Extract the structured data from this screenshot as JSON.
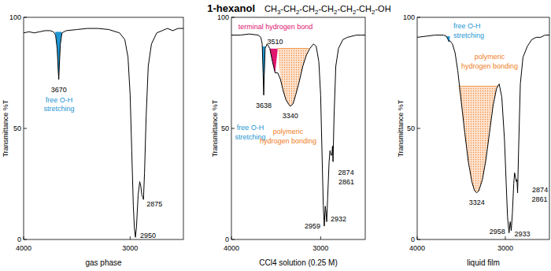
{
  "header": {
    "title": "1-hexanol",
    "formula": "CH3-CH2-CH2-CH2-CH2-CH2-OH"
  },
  "chart_data": [
    {
      "type": "line",
      "x_label": "gas phase",
      "y_label": "Transmittance %T",
      "xlim": [
        4000,
        2500
      ],
      "ylim": [
        0,
        100
      ],
      "xticks": [
        4000,
        3000
      ],
      "yticks": [
        0,
        50,
        100
      ],
      "series": [
        {
          "color": "#000000",
          "x": [
            4000,
            3950,
            3900,
            3850,
            3800,
            3750,
            3720,
            3700,
            3685,
            3675,
            3670,
            3665,
            3655,
            3640,
            3600,
            3500,
            3400,
            3300,
            3200,
            3100,
            3050,
            3020,
            3000,
            2985,
            2970,
            2960,
            2950,
            2940,
            2925,
            2910,
            2900,
            2890,
            2880,
            2875,
            2865,
            2850,
            2830,
            2800,
            2750,
            2700,
            2650,
            2600,
            2550,
            2500
          ],
          "values": [
            93,
            93.5,
            93,
            93.5,
            94,
            94,
            93.5,
            92,
            86,
            76,
            72,
            78,
            88,
            93,
            94,
            94.5,
            95,
            95,
            94.5,
            93,
            90,
            82,
            65,
            40,
            15,
            5,
            1,
            6,
            20,
            26,
            24,
            20,
            19,
            18,
            30,
            55,
            78,
            88,
            93,
            94,
            95,
            94,
            95,
            95
          ]
        }
      ],
      "bands": [
        {
          "label": [
            "free O-H",
            "stretching"
          ],
          "x": [
            3705,
            3640
          ],
          "baseline": 93.5,
          "color": "#1e96d2"
        }
      ],
      "peaks": [
        3670,
        2950,
        2875
      ]
    },
    {
      "type": "line",
      "x_label": "CCl4 solution (0.25 M)",
      "y_label": "Transmittance %T",
      "xlim": [
        4000,
        2500
      ],
      "ylim": [
        0,
        100
      ],
      "xticks": [
        4000,
        3000
      ],
      "yticks": [
        0,
        50,
        100
      ],
      "series": [
        {
          "color": "#000000",
          "x": [
            4000,
            3900,
            3800,
            3700,
            3670,
            3655,
            3645,
            3638,
            3632,
            3622,
            3600,
            3570,
            3540,
            3510,
            3480,
            3450,
            3420,
            3390,
            3360,
            3340,
            3310,
            3280,
            3240,
            3200,
            3160,
            3120,
            3080,
            3050,
            3020,
            3000,
            2985,
            2970,
            2959,
            2948,
            2940,
            2932,
            2922,
            2905,
            2895,
            2885,
            2874,
            2867,
            2861,
            2850,
            2830,
            2800,
            2750,
            2700,
            2650,
            2600,
            2550,
            2500
          ],
          "values": [
            92,
            92,
            92.5,
            92,
            91,
            88,
            75,
            65,
            74,
            86,
            88,
            86,
            80,
            75,
            75,
            72,
            67,
            63,
            61,
            60,
            61,
            65,
            71,
            78,
            83,
            86,
            88,
            87,
            80,
            65,
            40,
            15,
            6,
            15,
            12,
            8,
            18,
            35,
            40,
            38,
            38,
            42,
            35,
            55,
            78,
            86,
            90,
            91,
            91.5,
            92,
            92,
            92
          ]
        }
      ],
      "bands": [
        {
          "label": [
            "free O-H",
            "stretching"
          ],
          "x": [
            3662,
            3620
          ],
          "baseline": 87,
          "color": "#1e96d2"
        },
        {
          "label": [
            "terminal hydrogen bond"
          ],
          "x": [
            3575,
            3480
          ],
          "baseline": 86,
          "color": "#e0156f"
        },
        {
          "label": [
            "polymeric",
            "hydrogen bonding"
          ],
          "x": [
            3480,
            3130
          ],
          "baseline": 86,
          "color": "#f07d1e"
        }
      ],
      "peaks": [
        3638,
        3510,
        3340,
        2959,
        2932,
        2874,
        2861
      ]
    },
    {
      "type": "line",
      "x_label": "liquid film",
      "y_label": "Transmittance %T",
      "xlim": [
        4000,
        2500
      ],
      "ylim": [
        0,
        100
      ],
      "xticks": [
        4000,
        3000
      ],
      "yticks": [
        0,
        50,
        100
      ],
      "series": [
        {
          "color": "#000000",
          "x": [
            4000,
            3900,
            3800,
            3700,
            3670,
            3650,
            3640,
            3630,
            3600,
            3570,
            3540,
            3500,
            3460,
            3420,
            3380,
            3350,
            3324,
            3300,
            3260,
            3220,
            3180,
            3140,
            3100,
            3070,
            3040,
            3010,
            2990,
            2975,
            2958,
            2945,
            2933,
            2920,
            2905,
            2895,
            2885,
            2874,
            2868,
            2861,
            2850,
            2830,
            2800,
            2750,
            2700,
            2650,
            2600,
            2550,
            2500
          ],
          "values": [
            91,
            91.5,
            92,
            92,
            91.5,
            90,
            89,
            89.5,
            88,
            84,
            76,
            62,
            48,
            35,
            26,
            22,
            21,
            22,
            27,
            36,
            48,
            60,
            68,
            70,
            64,
            45,
            25,
            10,
            3,
            8,
            4,
            12,
            25,
            30,
            28,
            26,
            27,
            21,
            40,
            70,
            82,
            87,
            90,
            91,
            91,
            92,
            92
          ]
        }
      ],
      "bands": [
        {
          "label": [
            "free O-H",
            "stretching"
          ],
          "x": [
            3665,
            3628
          ],
          "baseline": 91.5,
          "color": "#1e96d2"
        },
        {
          "label": [
            "polymeric",
            "hydrogen bonding"
          ],
          "x": [
            3530,
            3080
          ],
          "baseline": 69,
          "color": "#f07d1e"
        }
      ],
      "peaks": [
        3324,
        2958,
        2933,
        2874,
        2861
      ]
    }
  ]
}
